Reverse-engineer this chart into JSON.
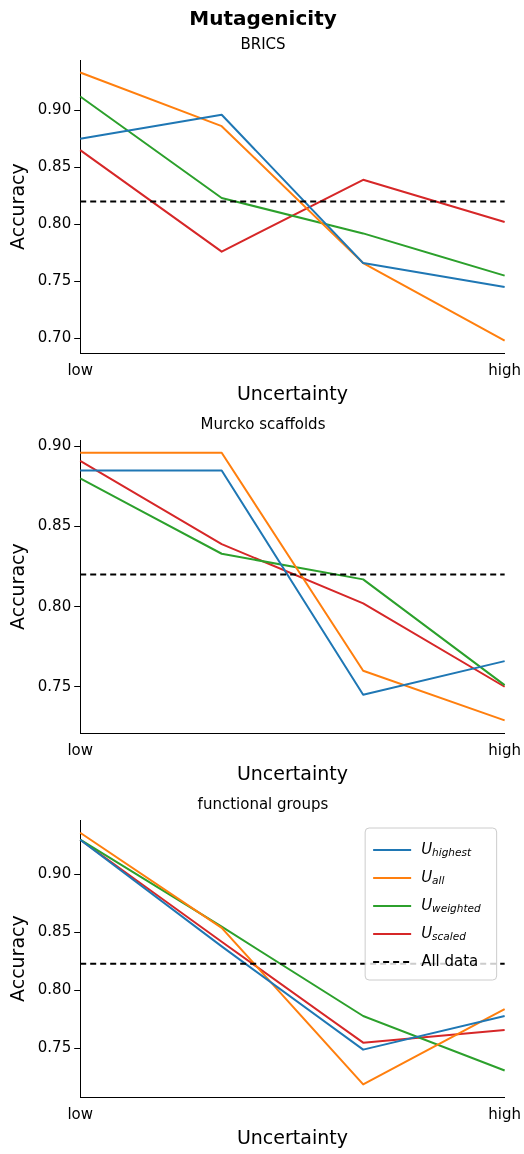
{
  "chart_data": [
    {
      "type": "line",
      "title": "Mutagenicity",
      "subtitle": "BRICS",
      "xlabel": "Uncertainty",
      "ylabel": "Accuracy",
      "categories": [
        "low",
        null,
        null,
        "high"
      ],
      "series": [
        {
          "color": "#1f77b4",
          "values": [
            0.875,
            0.896,
            0.766,
            0.745
          ]
        },
        {
          "color": "#ff7f0e",
          "values": [
            0.933,
            0.886,
            0.766,
            0.698
          ]
        },
        {
          "color": "#2ca02c",
          "values": [
            0.912,
            0.823,
            0.792,
            0.755
          ]
        },
        {
          "color": "#d62728",
          "values": [
            0.865,
            0.776,
            0.839,
            0.802
          ]
        }
      ],
      "ylim": [
        0.687,
        0.944
      ],
      "yticks": [
        {
          "value": 0.7,
          "label": "0.70"
        },
        {
          "value": 0.75,
          "label": "0.75"
        },
        {
          "value": 0.8,
          "label": "0.80"
        },
        {
          "value": 0.85,
          "label": "0.85"
        },
        {
          "value": 0.9,
          "label": "0.90"
        }
      ],
      "ref_lines": [
        {
          "axis": "y",
          "value": 0.82,
          "color": "#000000",
          "line_style": "dashed"
        }
      ],
      "grid": false,
      "legend": false,
      "marker": "none",
      "line_style": "solid"
    },
    {
      "type": "line",
      "title": "Murcko scaffolds",
      "xlabel": "Uncertainty",
      "ylabel": "Accuracy",
      "categories": [
        "low",
        null,
        null,
        "high"
      ],
      "series": [
        {
          "color": "#1f77b4",
          "values": [
            0.885,
            0.885,
            0.745,
            0.766
          ]
        },
        {
          "color": "#ff7f0e",
          "values": [
            0.896,
            0.896,
            0.76,
            0.729
          ]
        },
        {
          "color": "#2ca02c",
          "values": [
            0.88,
            0.833,
            0.817,
            0.751
          ]
        },
        {
          "color": "#d62728",
          "values": [
            0.891,
            0.839,
            0.802,
            0.75
          ]
        }
      ],
      "ylim": [
        0.721,
        0.904
      ],
      "yticks": [
        {
          "value": 0.75,
          "label": "0.75"
        },
        {
          "value": 0.8,
          "label": "0.80"
        },
        {
          "value": 0.85,
          "label": "0.85"
        },
        {
          "value": 0.9,
          "label": "0.90"
        }
      ],
      "ref_lines": [
        {
          "axis": "y",
          "value": 0.82,
          "color": "#000000",
          "line_style": "dashed"
        }
      ],
      "grid": false,
      "legend": false,
      "marker": "none",
      "line_style": "solid"
    },
    {
      "type": "line",
      "title": "functional groups",
      "xlabel": "Uncertainty",
      "ylabel": "Accuracy",
      "categories": [
        "low",
        null,
        null,
        "high"
      ],
      "series": [
        {
          "name": "U$_{highest}$",
          "color": "#1f77b4",
          "values": [
            0.93,
            0.838,
            0.749,
            0.778
          ]
        },
        {
          "name": "U$_{all}$",
          "color": "#ff7f0e",
          "values": [
            0.936,
            0.854,
            0.719,
            0.784
          ]
        },
        {
          "name": "U$_{weighted}$",
          "color": "#2ca02c",
          "values": [
            0.93,
            0.855,
            0.778,
            0.731
          ]
        },
        {
          "name": "U$_{scaled}$",
          "color": "#d62728",
          "values": [
            0.93,
            0.842,
            0.755,
            0.766
          ]
        }
      ],
      "ylim": [
        0.708,
        0.947
      ],
      "yticks": [
        {
          "value": 0.75,
          "label": "0.75"
        },
        {
          "value": 0.8,
          "label": "0.80"
        },
        {
          "value": 0.85,
          "label": "0.85"
        },
        {
          "value": 0.9,
          "label": "0.90"
        }
      ],
      "ref_lines": [
        {
          "axis": "y",
          "value": 0.823,
          "label": "All data",
          "color": "#000000",
          "line_style": "dashed"
        }
      ],
      "grid": false,
      "legend": "top right",
      "marker": "none",
      "line_style": "solid"
    }
  ]
}
